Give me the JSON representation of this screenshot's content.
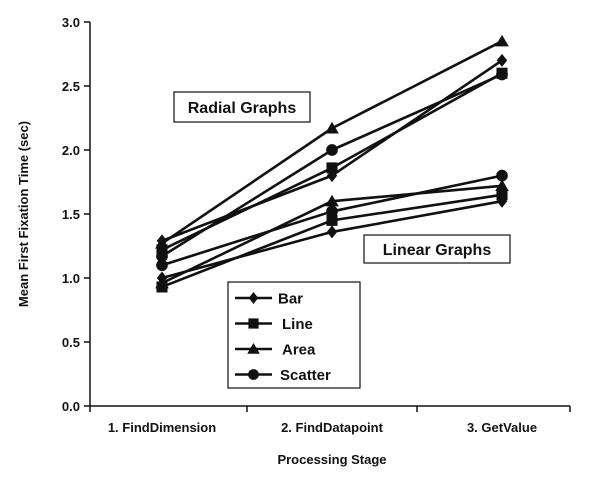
{
  "chart_data": {
    "type": "line",
    "xlabel": "Processing Stage",
    "ylabel": "Mean First Fixation Time (sec)",
    "categories": [
      "1. FindDimension",
      "2. FindDatapoint",
      "3. GetValue"
    ],
    "ylim": [
      0.0,
      3.0
    ],
    "yticks": [
      "0.0",
      "0.5",
      "1.0",
      "1.5",
      "2.0",
      "2.5",
      "3.0"
    ],
    "grid": false,
    "legend": {
      "position": "bottom-center",
      "entries": [
        "Bar",
        "Line",
        "Area",
        "Scatter"
      ]
    },
    "annotations": [
      "Radial Graphs",
      "Linear Graphs"
    ],
    "line_color": "#111111",
    "groups": [
      {
        "name": "Radial Graphs",
        "series": [
          {
            "name": "Bar",
            "marker": "diamond",
            "values": [
              1.29,
              1.8,
              2.7
            ]
          },
          {
            "name": "Line",
            "marker": "square",
            "values": [
              1.22,
              1.86,
              2.6
            ]
          },
          {
            "name": "Area",
            "marker": "triangle",
            "values": [
              1.27,
              2.17,
              2.85
            ]
          },
          {
            "name": "Scatter",
            "marker": "circle",
            "values": [
              1.17,
              2.0,
              2.59
            ]
          }
        ]
      },
      {
        "name": "Linear Graphs",
        "series": [
          {
            "name": "Bar",
            "marker": "diamond",
            "values": [
              1.0,
              1.36,
              1.6
            ]
          },
          {
            "name": "Line",
            "marker": "square",
            "values": [
              0.93,
              1.45,
              1.65
            ]
          },
          {
            "name": "Area",
            "marker": "triangle",
            "values": [
              0.96,
              1.6,
              1.72
            ]
          },
          {
            "name": "Scatter",
            "marker": "circle",
            "values": [
              1.1,
              1.52,
              1.8
            ]
          }
        ]
      }
    ]
  }
}
